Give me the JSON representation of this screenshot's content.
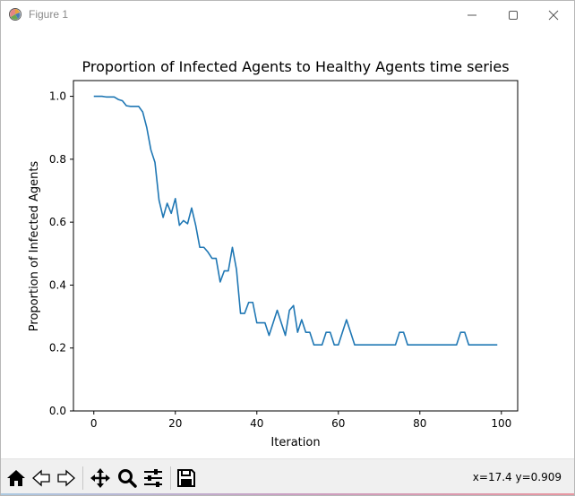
{
  "window": {
    "title": "Figure 1",
    "minimize_icon": "minimize-icon",
    "maximize_icon": "maximize-icon",
    "close_icon": "close-icon"
  },
  "toolbar": {
    "buttons": [
      {
        "name": "home-icon"
      },
      {
        "name": "back-arrow-icon"
      },
      {
        "name": "forward-arrow-icon"
      },
      {
        "name": "pan-icon"
      },
      {
        "name": "zoom-icon"
      },
      {
        "name": "configure-subplots-icon"
      },
      {
        "name": "save-icon"
      }
    ],
    "coord_readout": "x=17.4 y=0.909"
  },
  "chart_data": {
    "type": "line",
    "title": "Proportion of Infected Agents to Healthy Agents time series",
    "xlabel": "Iteration",
    "ylabel": "Proportion of Infected Agents",
    "xlim": [
      -5,
      104
    ],
    "ylim": [
      0.0,
      1.05
    ],
    "xticks": [
      0,
      20,
      40,
      60,
      80,
      100
    ],
    "yticks": [
      0.0,
      0.2,
      0.4,
      0.6,
      0.8,
      1.0
    ],
    "xtick_labels": [
      "0",
      "20",
      "40",
      "60",
      "80",
      "100"
    ],
    "ytick_labels": [
      "0.0",
      "0.2",
      "0.4",
      "0.6",
      "0.8",
      "1.0"
    ],
    "grid": false,
    "line_color": "#1f77b4",
    "series": [
      {
        "x": [
          0,
          1,
          2,
          3,
          4,
          5,
          6,
          7,
          8,
          9,
          10,
          11,
          12,
          13,
          14,
          15,
          16,
          17,
          18,
          19,
          20,
          21,
          22,
          23,
          24,
          25,
          26,
          27,
          28,
          29,
          30,
          31,
          32,
          33,
          34,
          35,
          36,
          37,
          38,
          39,
          40,
          41,
          42,
          43,
          44,
          45,
          46,
          47,
          48,
          49,
          50,
          51,
          52,
          53,
          54,
          55,
          56,
          57,
          58,
          59,
          60,
          61,
          62,
          63,
          64,
          65,
          66,
          67,
          68,
          69,
          70,
          71,
          72,
          73,
          74,
          75,
          76,
          77,
          78,
          79,
          80,
          81,
          82,
          83,
          84,
          85,
          86,
          87,
          88,
          89,
          90,
          91,
          92,
          93,
          94,
          95,
          96,
          97,
          98,
          99
        ],
        "values": [
          1.0,
          1.0,
          1.0,
          0.998,
          0.998,
          0.998,
          0.99,
          0.986,
          0.97,
          0.968,
          0.968,
          0.968,
          0.95,
          0.9,
          0.83,
          0.79,
          0.67,
          0.615,
          0.66,
          0.628,
          0.675,
          0.59,
          0.605,
          0.595,
          0.645,
          0.59,
          0.52,
          0.52,
          0.505,
          0.485,
          0.485,
          0.41,
          0.445,
          0.445,
          0.52,
          0.45,
          0.31,
          0.31,
          0.345,
          0.345,
          0.28,
          0.28,
          0.28,
          0.24,
          0.28,
          0.32,
          0.28,
          0.24,
          0.32,
          0.335,
          0.25,
          0.29,
          0.25,
          0.25,
          0.21,
          0.21,
          0.21,
          0.25,
          0.25,
          0.21,
          0.21,
          0.25,
          0.29,
          0.25,
          0.21,
          0.21,
          0.21,
          0.21,
          0.21,
          0.21,
          0.21,
          0.21,
          0.21,
          0.21,
          0.21,
          0.25,
          0.25,
          0.21,
          0.21,
          0.21,
          0.21,
          0.21,
          0.21,
          0.21,
          0.21,
          0.21,
          0.21,
          0.21,
          0.21,
          0.21,
          0.25,
          0.25,
          0.21,
          0.21,
          0.21,
          0.21,
          0.21,
          0.21,
          0.21,
          0.21
        ]
      }
    ]
  }
}
